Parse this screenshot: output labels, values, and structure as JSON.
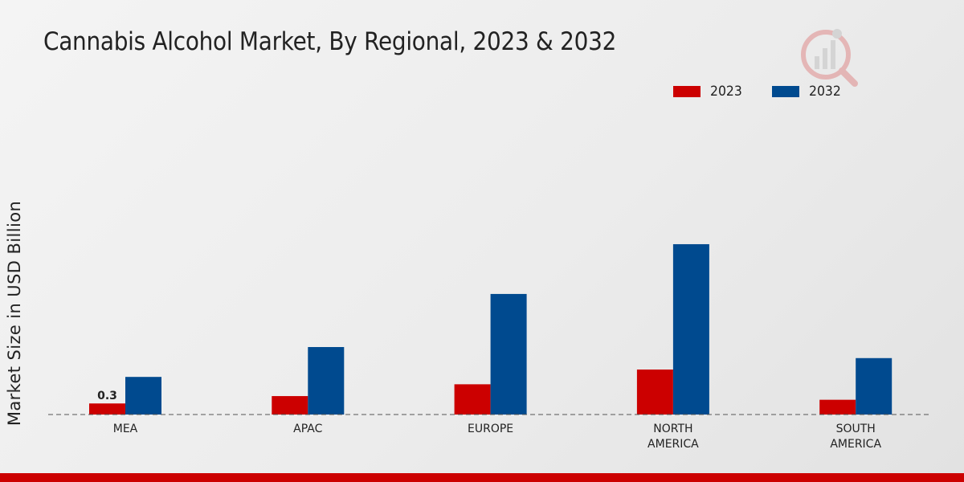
{
  "title": "Cannabis Alcohol Market, By Regional, 2023 & 2032",
  "colors": {
    "2023": "#cc0000",
    "2032": "#004a8f"
  },
  "chart_data": {
    "type": "bar",
    "title": "Cannabis Alcohol Market, By Regional, 2023 & 2032",
    "xlabel": "",
    "ylabel": "Market Size in USD Billion",
    "categories": [
      "MEA",
      "APAC",
      "EUROPE",
      "NORTH AMERICA",
      "SOUTH AMERICA"
    ],
    "category_lines": [
      [
        "MEA"
      ],
      [
        "APAC"
      ],
      [
        "EUROPE"
      ],
      [
        "NORTH",
        "AMERICA"
      ],
      [
        "SOUTH",
        "AMERICA"
      ]
    ],
    "series": [
      {
        "name": "2023",
        "values": [
          0.3,
          0.5,
          0.82,
          1.22,
          0.4
        ]
      },
      {
        "name": "2032",
        "values": [
          1.02,
          1.83,
          3.27,
          4.62,
          1.53
        ]
      }
    ],
    "data_labels": [
      {
        "series": "2023",
        "category": "MEA",
        "text": "0.3"
      }
    ],
    "ylim": [
      0,
      9.5
    ],
    "grid": false,
    "legend": "top-right"
  }
}
